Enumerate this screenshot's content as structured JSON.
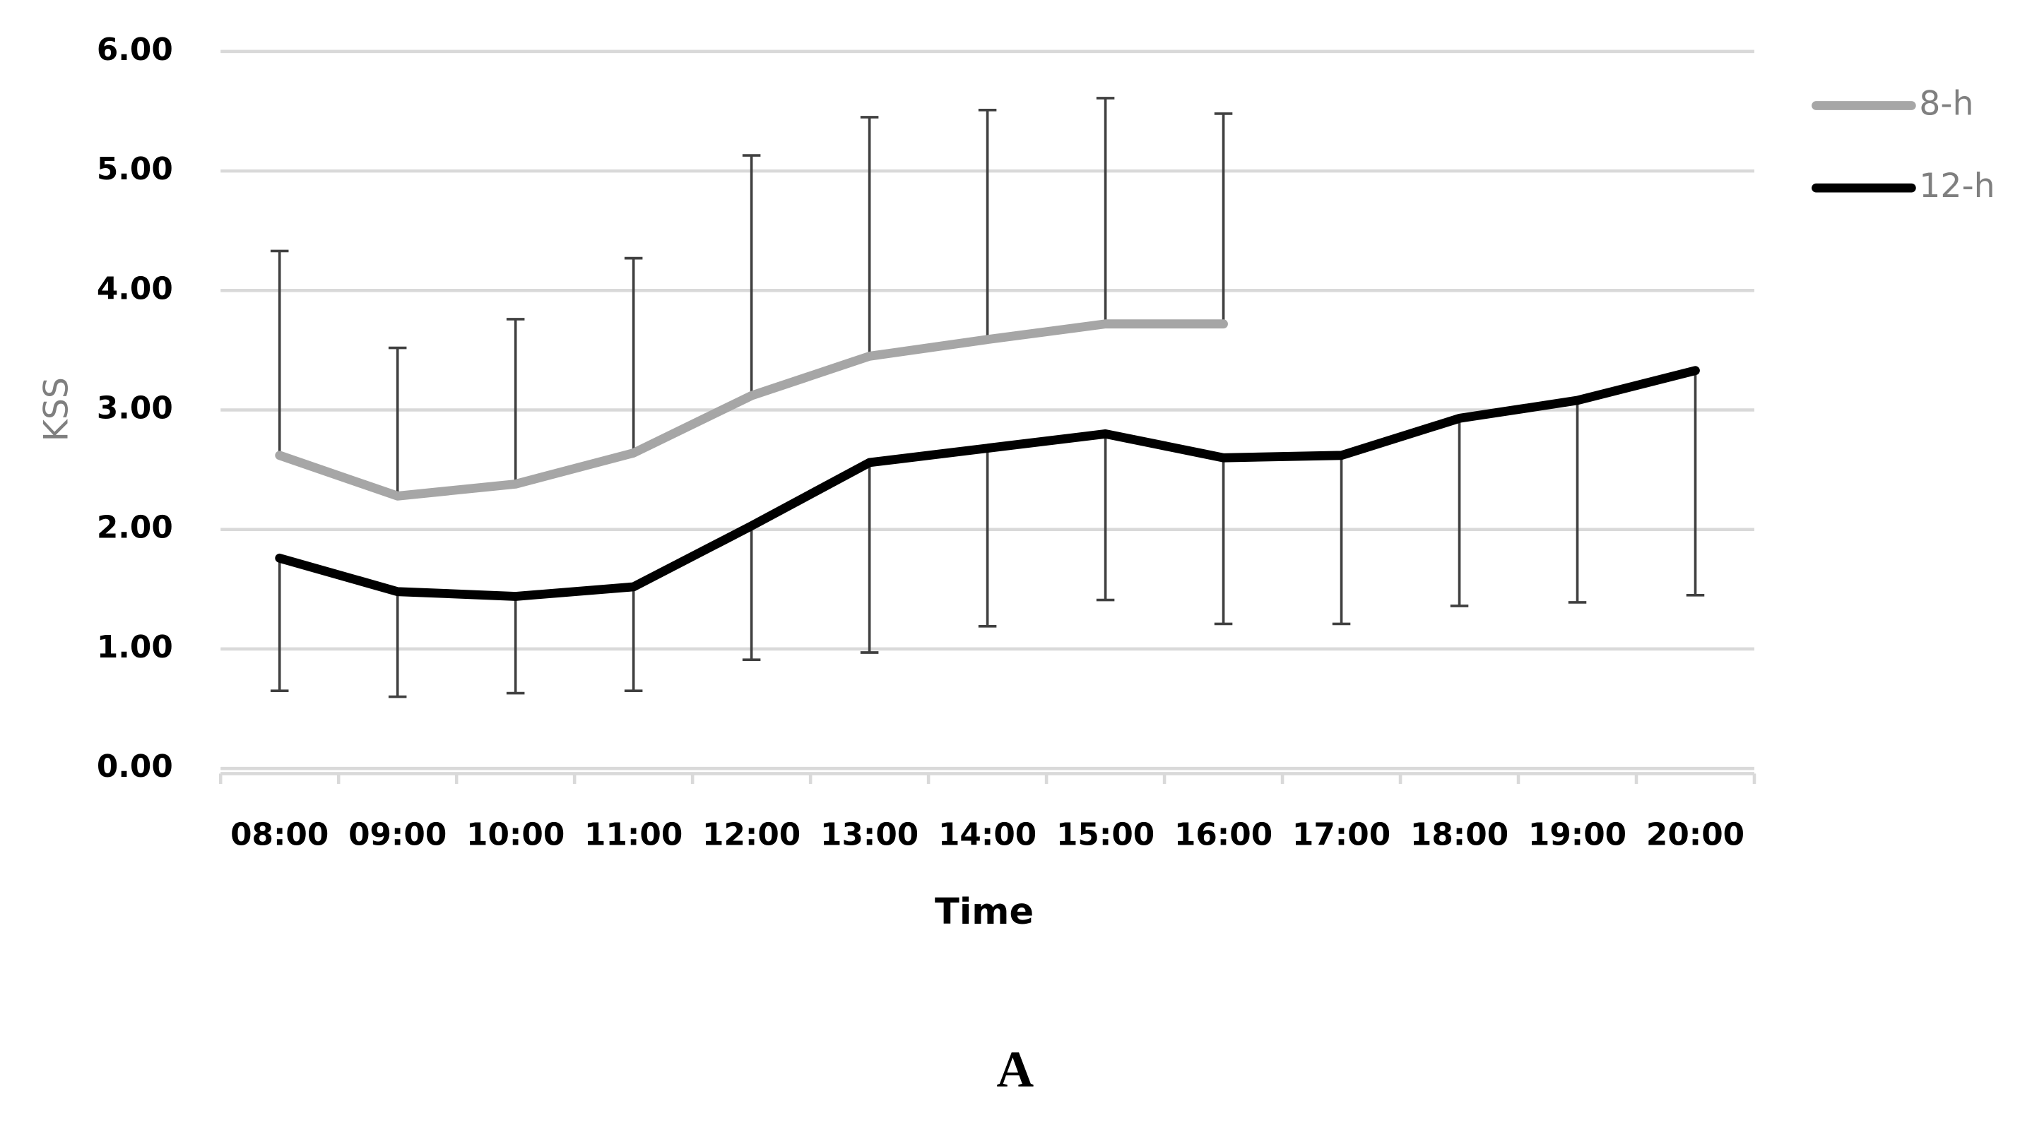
{
  "chart_data": {
    "type": "line",
    "x_label": "Time",
    "y_label": "KSS",
    "caption": "A",
    "categories": [
      "08:00",
      "09:00",
      "10:00",
      "11:00",
      "12:00",
      "13:00",
      "14:00",
      "15:00",
      "16:00",
      "17:00",
      "18:00",
      "19:00",
      "20:00"
    ],
    "series": [
      {
        "name": "8-h",
        "color": "#a6a6a6",
        "error_bar": "plus",
        "values": [
          2.62,
          2.28,
          2.38,
          2.64,
          3.12,
          3.45,
          3.59,
          3.72,
          3.72,
          null,
          null,
          null,
          null
        ],
        "errors": [
          1.71,
          1.24,
          1.38,
          1.63,
          2.01,
          2.0,
          1.92,
          1.89,
          1.76,
          null,
          null,
          null,
          null
        ]
      },
      {
        "name": "12-h",
        "color": "#000000",
        "error_bar": "minus",
        "values": [
          1.76,
          1.48,
          1.44,
          1.52,
          2.03,
          2.56,
          2.68,
          2.8,
          2.6,
          2.62,
          2.93,
          3.08,
          3.33
        ],
        "errors": [
          1.11,
          0.88,
          0.81,
          0.87,
          1.12,
          1.59,
          1.49,
          1.39,
          1.39,
          1.41,
          1.57,
          1.69,
          1.88
        ]
      }
    ],
    "ylim": [
      0,
      6
    ],
    "yticks": [
      {
        "value": 0,
        "label": "0.00"
      },
      {
        "value": 1,
        "label": "1.00"
      },
      {
        "value": 2,
        "label": "2.00"
      },
      {
        "value": 3,
        "label": "3.00"
      },
      {
        "value": 4,
        "label": "4.00"
      },
      {
        "value": 5,
        "label": "5.00"
      },
      {
        "value": 6,
        "label": "6.00"
      }
    ],
    "grid": true,
    "legend": "right"
  }
}
